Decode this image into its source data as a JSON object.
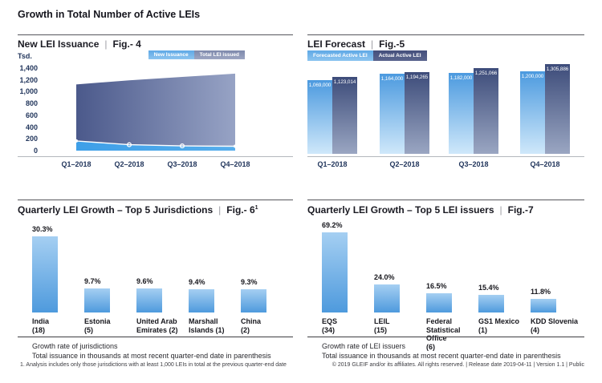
{
  "page": {
    "title": "Growth in Total Number of Active LEIs",
    "footnote": "1. Analysis includes only those jurisdictions with at least 1,000 LEIs in total at the previous quarter-end date",
    "footer": "© 2019 GLEIF and/or its affiliates. All rights reserved.  |  Release date 2019-04-11  |  Version 1.1  |  Public"
  },
  "divider": "|",
  "colors": {
    "light_blue": "#4AA0E4",
    "dark_navy": "#3D4C7A",
    "slate_blue": "#8A95B8",
    "axis_text": "#22365C"
  },
  "chart_data": [
    {
      "id": "fig4",
      "type": "area",
      "title": "New LEI Issuance",
      "fig": "Fig.- 4",
      "ylabel": "Tsd.",
      "categories": [
        "Q1–2018",
        "Q2–2018",
        "Q3–2018",
        "Q4–2018"
      ],
      "series": [
        {
          "name": "New Issuance",
          "values": [
            165,
            100,
            80,
            75
          ]
        },
        {
          "name": "Total LEI issued",
          "values": [
            1123,
            1194,
            1251,
            1306
          ]
        }
      ],
      "ylim": [
        0,
        1400
      ],
      "yticks": [
        "1,400",
        "1,200",
        "1,000",
        "800",
        "600",
        "400",
        "200",
        "0"
      ],
      "legend_position": "top-right",
      "grid": false
    },
    {
      "id": "fig5",
      "type": "bar",
      "title": "LEI Forecast",
      "fig": "Fig.-5",
      "categories": [
        "Q1–2018",
        "Q2–2018",
        "Q3–2018",
        "Q4–2018"
      ],
      "series": [
        {
          "name": "Forecasted Active LEI",
          "values": [
            1069000,
            1164000,
            1182000,
            1200000
          ],
          "labels": [
            "1,069,000",
            "1,164,000",
            "1,182,000",
            "1,200,000"
          ]
        },
        {
          "name": "Actual Active LEI",
          "values": [
            1123014,
            1194265,
            1251066,
            1305886
          ],
          "labels": [
            "1,123,014",
            "1,194,265",
            "1,251,066",
            "1,305,886"
          ]
        }
      ],
      "ylim": [
        0,
        1400000
      ],
      "legend_position": "top-left",
      "grid": false
    },
    {
      "id": "fig6",
      "type": "bar",
      "title": "Quarterly LEI Growth – Top 5 Jurisdictions",
      "fig": "Fig.- 6",
      "fig_superscript": "1",
      "categories": [
        "India (18)",
        "Estonia (5)",
        "United Arab Emirates (2)",
        "Marshall Islands (1)",
        "China (2)"
      ],
      "category_lines": [
        [
          "India",
          "(18)"
        ],
        [
          "Estonia",
          "(5)"
        ],
        [
          "United Arab",
          "Emirates (2)"
        ],
        [
          "Marshall",
          "Islands (1)"
        ],
        [
          "China",
          "(2)"
        ]
      ],
      "values": [
        30.3,
        9.7,
        9.6,
        9.4,
        9.3
      ],
      "value_labels": [
        "30.3%",
        "9.7%",
        "9.6%",
        "9.4%",
        "9.3%"
      ],
      "notes": [
        "Growth rate of jurisdictions",
        "Total issuance in thousands at most recent quarter-end date in parenthesis"
      ]
    },
    {
      "id": "fig7",
      "type": "bar",
      "title": "Quarterly LEI Growth – Top 5 LEI issuers",
      "fig": "Fig.-7",
      "categories": [
        "EQS (34)",
        "LEIL (15)",
        "Federal Statistical Office (6)",
        "GS1 Mexico (1)",
        "KDD Slovenia (4)"
      ],
      "category_lines": [
        [
          "EQS",
          "(34)"
        ],
        [
          "LEIL",
          "(15)"
        ],
        [
          "Federal",
          "Statistical Office",
          "(6)"
        ],
        [
          "GS1 Mexico",
          "(1)"
        ],
        [
          "KDD Slovenia",
          "(4)"
        ]
      ],
      "values": [
        69.2,
        24.0,
        16.5,
        15.4,
        11.8
      ],
      "value_labels": [
        "69.2%",
        "24.0%",
        "16.5%",
        "15.4%",
        "11.8%"
      ],
      "notes": [
        "Growth rate of LEI issuers",
        "Total issuance in thousands at most recent quarter-end date in parenthesis"
      ]
    }
  ]
}
